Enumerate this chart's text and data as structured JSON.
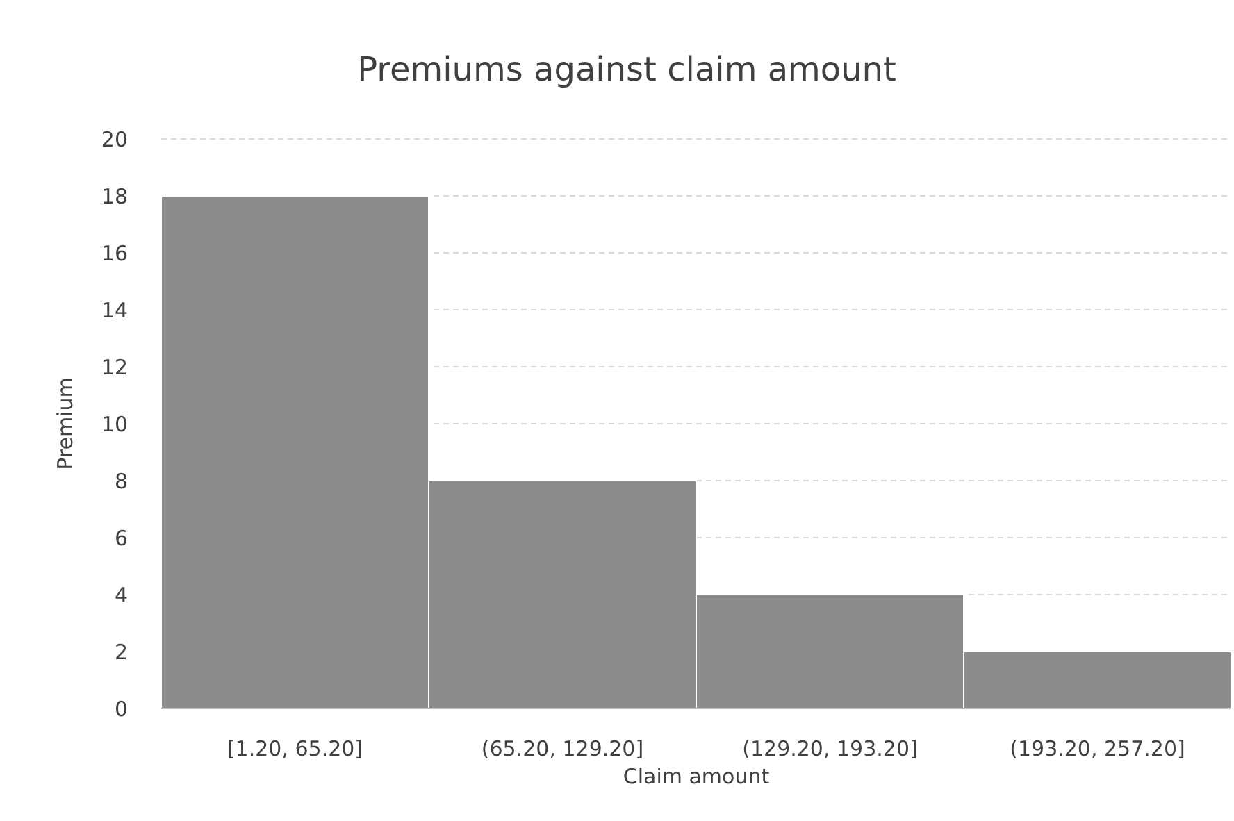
{
  "chart_data": {
    "type": "bar",
    "title": "Premiums against claim amount",
    "xlabel": "Claim amount",
    "ylabel": "Premium",
    "categories": [
      "[1.20, 65.20]",
      "(65.20, 129.20]",
      "(129.20, 193.20]",
      "(193.20, 257.20]"
    ],
    "values": [
      18,
      8,
      4,
      2
    ],
    "color": "#8c8c8c",
    "ylim": [
      0,
      20
    ],
    "yticks": [
      0,
      2,
      4,
      6,
      8,
      10,
      12,
      14,
      16,
      18,
      20
    ],
    "grid": "y"
  }
}
